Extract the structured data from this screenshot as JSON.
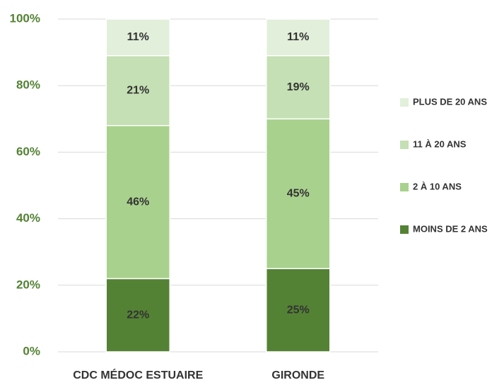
{
  "chart_data": {
    "type": "stacked_bar",
    "categories": [
      "CDC MÉDOC ESTUAIRE",
      "GIRONDE"
    ],
    "series": [
      {
        "name": "MOINS DE 2 ANS",
        "color": "#548235",
        "values": [
          22,
          25
        ],
        "value_labels": [
          "22%",
          "25%"
        ]
      },
      {
        "name": "2 À 10 ANS",
        "color": "#a9d18e",
        "values": [
          46,
          45
        ],
        "value_labels": [
          "46%",
          "45%"
        ]
      },
      {
        "name": "11 À 20 ANS",
        "color": "#c5e0b4",
        "values": [
          21,
          19
        ],
        "value_labels": [
          "21%",
          "19%"
        ]
      },
      {
        "name": "PLUS DE 20 ANS",
        "color": "#e2efda",
        "values": [
          11,
          11
        ],
        "value_labels": [
          "11%",
          "11%"
        ]
      }
    ],
    "ylim": [
      0,
      100
    ],
    "yticks": [
      {
        "value": 0,
        "label": "0%"
      },
      {
        "value": 20,
        "label": "20%"
      },
      {
        "value": 40,
        "label": "40%"
      },
      {
        "value": 60,
        "label": "60%"
      },
      {
        "value": 80,
        "label": "80%"
      },
      {
        "value": 100,
        "label": "100%"
      }
    ],
    "grid": true,
    "legend": "right"
  }
}
